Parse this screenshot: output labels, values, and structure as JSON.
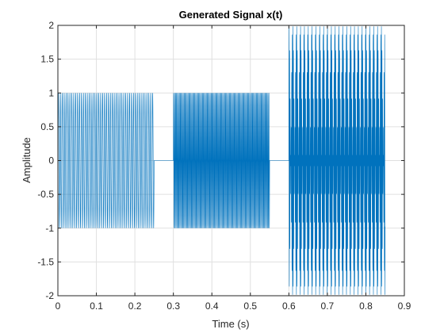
{
  "chart_data": {
    "type": "line",
    "title": "Generated Signal x(t)",
    "xlabel": "Time (s)",
    "ylabel": "Amplitude",
    "xlim": [
      0,
      0.9
    ],
    "ylim": [
      -2,
      2
    ],
    "xticks": [
      0,
      0.1,
      0.2,
      0.3,
      0.4,
      0.5,
      0.6,
      0.7,
      0.8,
      0.9
    ],
    "xtick_labels": [
      "0",
      "0.1",
      "0.2",
      "0.3",
      "0.4",
      "0.5",
      "0.6",
      "0.7",
      "0.8",
      "0.9"
    ],
    "yticks": [
      -2,
      -1.5,
      -1,
      -0.5,
      0,
      0.5,
      1,
      1.5,
      2
    ],
    "ytick_labels": [
      "-2",
      "-1.5",
      "-1",
      "-0.5",
      "0",
      "0.5",
      "1",
      "1.5",
      "2"
    ],
    "grid": true,
    "line_color": "#0072bd",
    "segments": [
      {
        "t_start": 0.0,
        "t_end": 0.25,
        "components": [
          {
            "amplitude": 1.0,
            "frequency_hz": 200
          }
        ]
      },
      {
        "t_start": 0.25,
        "t_end": 0.3,
        "components": []
      },
      {
        "t_start": 0.3,
        "t_end": 0.55,
        "components": [
          {
            "amplitude": 1.0,
            "frequency_hz": 400
          }
        ]
      },
      {
        "t_start": 0.55,
        "t_end": 0.6,
        "components": []
      },
      {
        "t_start": 0.6,
        "t_end": 0.85,
        "components": [
          {
            "amplitude": 1.0,
            "frequency_hz": 600
          },
          {
            "amplitude": 1.0,
            "frequency_hz": 700
          }
        ]
      }
    ]
  }
}
